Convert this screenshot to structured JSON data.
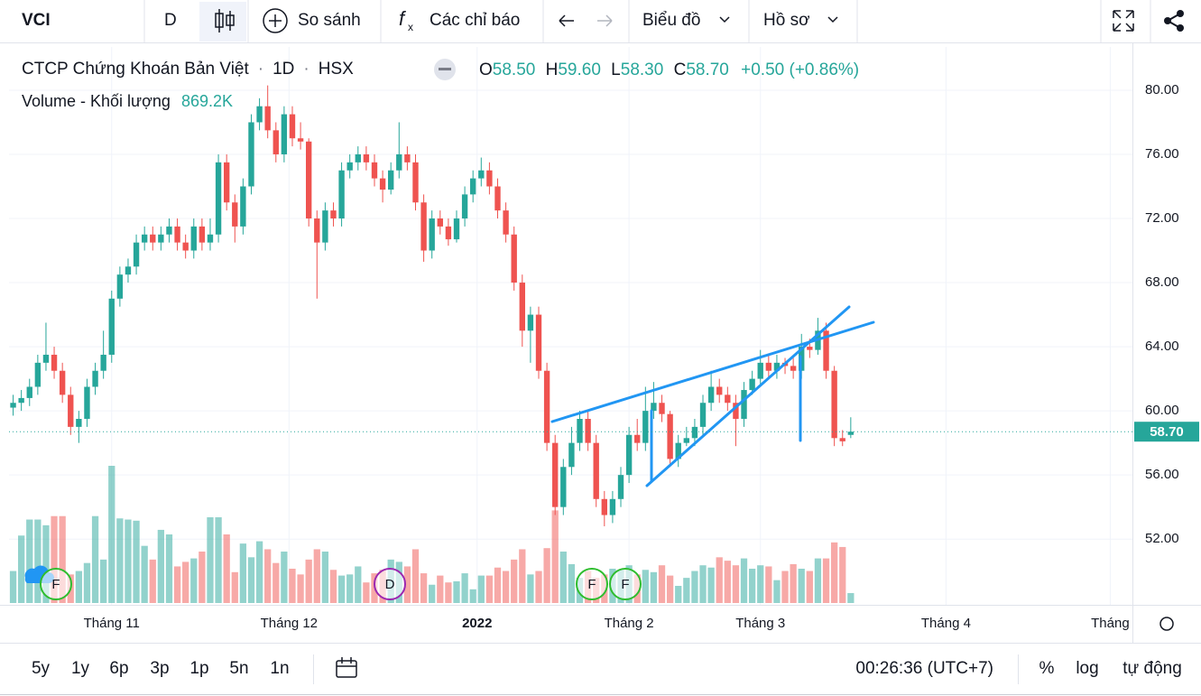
{
  "toolbar": {
    "symbol": "VCI",
    "interval": "D",
    "compare": "So sánh",
    "indicators": "Các chỉ báo",
    "chart_type": "Biểu đồ",
    "profile": "Hồ sơ"
  },
  "legend": {
    "title": "CTCP Chứng Khoán Bản Việt",
    "interval": "1D",
    "exchange": "HSX",
    "o_label": "O",
    "o": "58.50",
    "h_label": "H",
    "h": "59.60",
    "l_label": "L",
    "l": "58.30",
    "c_label": "C",
    "c": "58.70",
    "change": "+0.50 (+0.86%)",
    "volume_label": "Volume - Khối lượng",
    "volume": "869.2K"
  },
  "markers": [
    "F",
    "D",
    "F",
    "F"
  ],
  "bottom": {
    "ranges": [
      "5y",
      "1y",
      "6p",
      "3p",
      "1p",
      "5n",
      "1n"
    ],
    "time": "00:26:36 (UTC+7)",
    "percent": "%",
    "log": "log",
    "auto": "tự động"
  },
  "chart_data": {
    "type": "candlestick",
    "up_color": "#26a69a",
    "down_color": "#ef5350",
    "open": [
      60.2,
      60.5,
      60.8,
      61.5,
      63,
      63.5,
      62.5,
      61,
      59,
      59.5,
      61.5,
      62.5,
      63.5,
      67,
      68.5,
      69,
      70.5,
      71,
      70.5,
      71,
      71.5,
      70.5,
      70,
      71.5,
      70.5,
      71,
      75.5,
      73,
      71.5,
      74,
      78,
      79,
      77.5,
      76,
      78.5,
      77,
      76.8,
      72,
      70.5,
      72.5,
      72,
      75,
      75.5,
      76,
      75.5,
      74.5,
      73.8,
      75,
      76,
      75.5,
      73,
      70,
      72,
      71.5,
      70.7,
      72,
      73.5,
      74.5,
      75,
      74,
      72.5,
      71,
      68,
      65,
      66,
      62.5,
      58,
      54,
      56.5,
      58,
      59.5,
      58,
      54.5,
      53.5,
      54.5,
      56,
      58.5,
      58,
      60,
      60.5,
      59.8,
      57,
      58,
      58.3,
      59,
      60.5,
      61.5,
      61,
      60.5,
      59.5,
      61.3,
      62,
      63,
      62.5,
      63,
      62.8,
      62.5,
      64,
      63.8,
      65,
      62.5,
      58.3,
      58.5
    ],
    "high": [
      61,
      61.3,
      62,
      63.5,
      65.5,
      64,
      63,
      61.5,
      60,
      62,
      63,
      65,
      67.5,
      69,
      69.5,
      71,
      71.5,
      71.5,
      71.5,
      72,
      72,
      71,
      72,
      72,
      72,
      76,
      76,
      73.5,
      74.5,
      78.5,
      79.5,
      80.3,
      78,
      79,
      79,
      78,
      77,
      72.5,
      73,
      73,
      75.5,
      76,
      76.5,
      76.5,
      76,
      75,
      75.5,
      78,
      76.5,
      76,
      73.5,
      72.5,
      72.5,
      72,
      72.5,
      74,
      75,
      75.8,
      75.5,
      74.5,
      73,
      71.5,
      68.5,
      66.5,
      66.5,
      63,
      58.5,
      57,
      59,
      60,
      60,
      58.5,
      55,
      55,
      56.5,
      59,
      59.5,
      61.5,
      61.8,
      61,
      60,
      58.5,
      59,
      59.5,
      61,
      62.5,
      62,
      61.5,
      61,
      61.8,
      62.5,
      63.8,
      63.5,
      63.5,
      63.3,
      63.3,
      64.8,
      64.5,
      65.8,
      65.5,
      62.8,
      58.8,
      59.6
    ],
    "low": [
      59.7,
      60,
      60.3,
      61,
      62.5,
      62,
      60.5,
      58.5,
      58,
      59,
      61,
      62,
      63,
      66.5,
      68,
      68.5,
      70,
      70,
      70,
      70.5,
      70,
      69.5,
      69.5,
      70,
      70,
      70.5,
      72.5,
      70.5,
      71,
      73.5,
      77.5,
      77,
      75.5,
      75.5,
      76.5,
      76.3,
      71.5,
      67,
      70,
      71.5,
      71.5,
      74.5,
      75,
      75,
      74,
      73,
      73.5,
      74.5,
      75,
      72.5,
      69.3,
      69.5,
      71,
      70.3,
      70.5,
      71.5,
      73,
      74,
      73.5,
      72,
      70.5,
      67.5,
      64,
      63,
      62,
      57.5,
      53.5,
      53.5,
      56,
      57.5,
      57.5,
      54,
      52.8,
      53,
      54,
      55.5,
      57.5,
      57.5,
      59.5,
      59.3,
      56.5,
      56.5,
      57.8,
      57.8,
      58.5,
      60,
      60.5,
      60,
      57.8,
      59,
      61,
      61.5,
      62,
      62,
      62.3,
      62,
      62,
      63.3,
      63.5,
      62,
      57.8,
      57.8,
      58.3
    ],
    "close": [
      60.5,
      60.8,
      61.5,
      63,
      63.5,
      62.5,
      61,
      59,
      59.5,
      61.5,
      62.5,
      63.5,
      67,
      68.5,
      69,
      70.5,
      71,
      70.5,
      71,
      71.5,
      70.5,
      70,
      71.5,
      70.5,
      71,
      75.5,
      73,
      71.5,
      74,
      78,
      79,
      77.5,
      76,
      78.5,
      77,
      76.8,
      72,
      70.5,
      72.5,
      72,
      75,
      75.5,
      76,
      75.5,
      74.5,
      73.8,
      75,
      76,
      75.5,
      73,
      70,
      72,
      71.5,
      70.7,
      72,
      73.5,
      74.5,
      75,
      74,
      72.5,
      71,
      68,
      65,
      66,
      62.5,
      58,
      54,
      56.5,
      58,
      59.5,
      58,
      54.5,
      53.5,
      54.5,
      56,
      58.5,
      58,
      60,
      60.5,
      59.8,
      57,
      58,
      58.3,
      59,
      60.5,
      61.5,
      61,
      60.5,
      59.5,
      61.3,
      62,
      63,
      62.5,
      63,
      62.8,
      62.5,
      64,
      63.8,
      65,
      62.5,
      58.3,
      58.1,
      58.7
    ],
    "volume": [
      2800,
      5900,
      7300,
      7300,
      6800,
      7600,
      7600,
      2500,
      2800,
      3500,
      7600,
      3800,
      12000,
      7400,
      7300,
      7200,
      5000,
      3800,
      6400,
      6000,
      3200,
      3600,
      3900,
      4500,
      7500,
      7500,
      6000,
      2700,
      5200,
      4000,
      5400,
      4700,
      3500,
      4500,
      3000,
      2500,
      3800,
      4700,
      4500,
      2900,
      2400,
      2500,
      3200,
      1800,
      2600,
      2900,
      3800,
      3600,
      3200,
      4700,
      2600,
      1600,
      2400,
      1800,
      1900,
      2600,
      1200,
      2400,
      2400,
      3100,
      2800,
      3800,
      4700,
      2500,
      2800,
      4800,
      8100,
      4500,
      3400,
      2200,
      2800,
      2200,
      2500,
      3000,
      2900,
      3300,
      2500,
      2900,
      2700,
      3300,
      2400,
      1500,
      2200,
      2800,
      3300,
      3100,
      4000,
      3700,
      3300,
      3900,
      3000,
      3300,
      3200,
      2000,
      2800,
      3400,
      3000,
      2800,
      3900,
      3900,
      5300,
      4900,
      869.2
    ],
    "last_label": "58.70",
    "xlim": [
      -0.5,
      136.3
    ],
    "xticks": [
      {
        "value": 12,
        "label": "Tháng 11"
      },
      {
        "value": 33.6,
        "label": "Tháng 12"
      },
      {
        "value": 56.5,
        "label": "2022"
      },
      {
        "value": 75,
        "label": "Tháng 2"
      },
      {
        "value": 91,
        "label": "Tháng 3"
      },
      {
        "value": 113.6,
        "label": "Tháng 4"
      },
      {
        "value": 133.6,
        "label": "Tháng"
      }
    ],
    "ylim": [
      47.9,
      82.7
    ],
    "yticks": [
      {
        "value": 52,
        "label": "52.00"
      },
      {
        "value": 56,
        "label": "56.00"
      },
      {
        "value": 60,
        "label": "60.00"
      },
      {
        "value": 64,
        "label": "64.00"
      },
      {
        "value": 68,
        "label": "68.00"
      },
      {
        "value": 72,
        "label": "72.00"
      },
      {
        "value": 76,
        "label": "76.00"
      },
      {
        "value": 80,
        "label": "80.00"
      }
    ],
    "grid": true
  }
}
